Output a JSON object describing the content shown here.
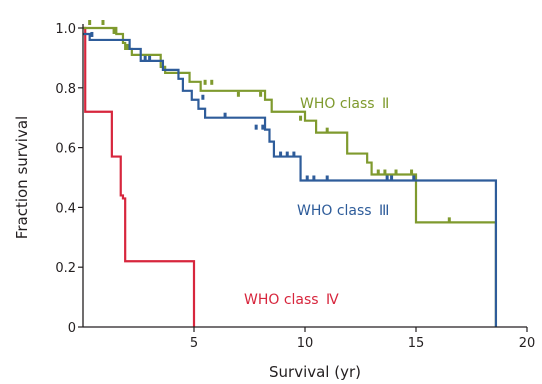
{
  "chart_data": {
    "type": "line",
    "subtype": "kaplan-meier step survival curves",
    "title": "",
    "xlabel": "Survival (yr)",
    "ylabel": "Fraction survival",
    "xlim": [
      0,
      20
    ],
    "ylim": [
      0,
      1.0
    ],
    "xticks": [
      5,
      10,
      15,
      20
    ],
    "xtick_labels": [
      "5",
      "10",
      "15",
      "20"
    ],
    "yticks": [
      0,
      0.2,
      0.4,
      0.6,
      0.8,
      1.0
    ],
    "ytick_labels": [
      "0",
      "0.2",
      "0.4",
      "0.6",
      "0.8",
      "1.0"
    ],
    "grid": false,
    "legend": "inline labels next to curves",
    "series": [
      {
        "name": "WHO class II",
        "label_text": "WHO class",
        "label_numeral": "II",
        "color": "#7f9a2e",
        "steps": [
          [
            0,
            1.0
          ],
          [
            1.0,
            1.0
          ],
          [
            1.5,
            0.98
          ],
          [
            1.8,
            0.95
          ],
          [
            1.9,
            0.93
          ],
          [
            2.2,
            0.91
          ],
          [
            3.5,
            0.87
          ],
          [
            3.7,
            0.85
          ],
          [
            4.8,
            0.82
          ],
          [
            5.3,
            0.79
          ],
          [
            8.2,
            0.76
          ],
          [
            8.5,
            0.72
          ],
          [
            10.0,
            0.69
          ],
          [
            10.5,
            0.65
          ],
          [
            11.9,
            0.58
          ],
          [
            12.8,
            0.55
          ],
          [
            13.0,
            0.51
          ],
          [
            15.0,
            0.35
          ],
          [
            18.6,
            0.35
          ],
          [
            18.6,
            0.0
          ]
        ],
        "censored": [
          [
            0.3,
            1.01
          ],
          [
            0.9,
            1.01
          ],
          [
            1.4,
            0.98
          ],
          [
            2.0,
            0.93
          ],
          [
            5.5,
            0.81
          ],
          [
            5.8,
            0.81
          ],
          [
            7.0,
            0.77
          ],
          [
            8.0,
            0.77
          ],
          [
            9.8,
            0.69
          ],
          [
            11.0,
            0.65
          ],
          [
            13.3,
            0.51
          ],
          [
            13.6,
            0.51
          ],
          [
            14.1,
            0.51
          ],
          [
            14.8,
            0.51
          ],
          [
            16.5,
            0.35
          ]
        ]
      },
      {
        "name": "WHO class III",
        "label_text": "WHO class",
        "label_numeral": "III",
        "color": "#2e5c9a",
        "steps": [
          [
            0,
            0.98
          ],
          [
            0.3,
            0.96
          ],
          [
            2.1,
            0.93
          ],
          [
            2.6,
            0.89
          ],
          [
            3.6,
            0.86
          ],
          [
            4.3,
            0.83
          ],
          [
            4.5,
            0.79
          ],
          [
            4.9,
            0.76
          ],
          [
            5.2,
            0.73
          ],
          [
            5.5,
            0.7
          ],
          [
            8.2,
            0.66
          ],
          [
            8.4,
            0.62
          ],
          [
            8.6,
            0.57
          ],
          [
            9.8,
            0.53
          ],
          [
            9.8,
            0.49
          ],
          [
            18.6,
            0.49
          ],
          [
            18.6,
            0.0
          ]
        ],
        "censored": [
          [
            0.4,
            0.97
          ],
          [
            2.8,
            0.89
          ],
          [
            3.0,
            0.89
          ],
          [
            5.4,
            0.76
          ],
          [
            6.4,
            0.7
          ],
          [
            7.8,
            0.66
          ],
          [
            8.1,
            0.66
          ],
          [
            8.9,
            0.57
          ],
          [
            9.2,
            0.57
          ],
          [
            9.5,
            0.57
          ],
          [
            10.1,
            0.49
          ],
          [
            10.4,
            0.49
          ],
          [
            11.0,
            0.49
          ],
          [
            13.7,
            0.49
          ],
          [
            13.9,
            0.49
          ],
          [
            14.9,
            0.49
          ]
        ]
      },
      {
        "name": "WHO class IV",
        "label_text": "WHO class",
        "label_numeral": "IV",
        "color": "#d7263d",
        "steps": [
          [
            0,
            1.0
          ],
          [
            0.1,
            0.72
          ],
          [
            1.2,
            0.72
          ],
          [
            1.3,
            0.57
          ],
          [
            1.6,
            0.57
          ],
          [
            1.7,
            0.44
          ],
          [
            1.8,
            0.43
          ],
          [
            1.9,
            0.22
          ],
          [
            5.0,
            0.22
          ],
          [
            5.0,
            0.0
          ]
        ],
        "censored": []
      }
    ]
  }
}
